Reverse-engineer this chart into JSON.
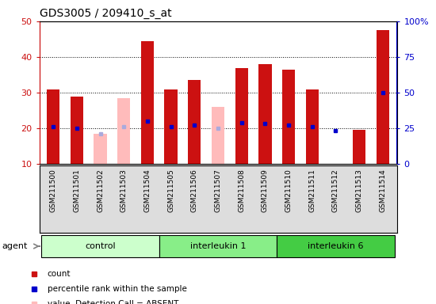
{
  "title": "GDS3005 / 209410_s_at",
  "samples": [
    "GSM211500",
    "GSM211501",
    "GSM211502",
    "GSM211503",
    "GSM211504",
    "GSM211505",
    "GSM211506",
    "GSM211507",
    "GSM211508",
    "GSM211509",
    "GSM211510",
    "GSM211511",
    "GSM211512",
    "GSM211513",
    "GSM211514"
  ],
  "groups": [
    {
      "label": "control",
      "color": "#ccffcc",
      "n": 5
    },
    {
      "label": "interleukin 1",
      "color": "#88ee88",
      "n": 5
    },
    {
      "label": "interleukin 6",
      "color": "#44cc44",
      "n": 5
    }
  ],
  "count_values": [
    31.0,
    29.0,
    null,
    null,
    44.5,
    31.0,
    33.5,
    null,
    37.0,
    38.0,
    36.5,
    31.0,
    null,
    19.5,
    47.5
  ],
  "rank_values": [
    26.0,
    25.0,
    null,
    null,
    30.0,
    26.0,
    27.5,
    null,
    29.0,
    28.5,
    27.5,
    26.0,
    null,
    null,
    50.0
  ],
  "absent_count": [
    null,
    null,
    18.5,
    28.5,
    null,
    null,
    null,
    26.0,
    null,
    null,
    null,
    null,
    null,
    null,
    null
  ],
  "absent_rank": [
    null,
    null,
    21.5,
    26.5,
    null,
    null,
    null,
    25.0,
    null,
    null,
    null,
    null,
    null,
    null,
    null
  ],
  "solo_rank": [
    null,
    null,
    null,
    null,
    null,
    null,
    null,
    null,
    null,
    null,
    null,
    null,
    23.5,
    null,
    null
  ],
  "ylim_left": [
    10,
    50
  ],
  "ylim_right": [
    0,
    100
  ],
  "yticks_left": [
    10,
    20,
    30,
    40,
    50
  ],
  "yticks_right": [
    0,
    25,
    50,
    75,
    100
  ],
  "bar_width": 0.55,
  "count_color": "#cc1111",
  "rank_color": "#0000cc",
  "absent_count_color": "#ffbbbb",
  "absent_rank_color": "#aaaadd",
  "figsize": [
    5.5,
    3.84
  ],
  "dpi": 100
}
